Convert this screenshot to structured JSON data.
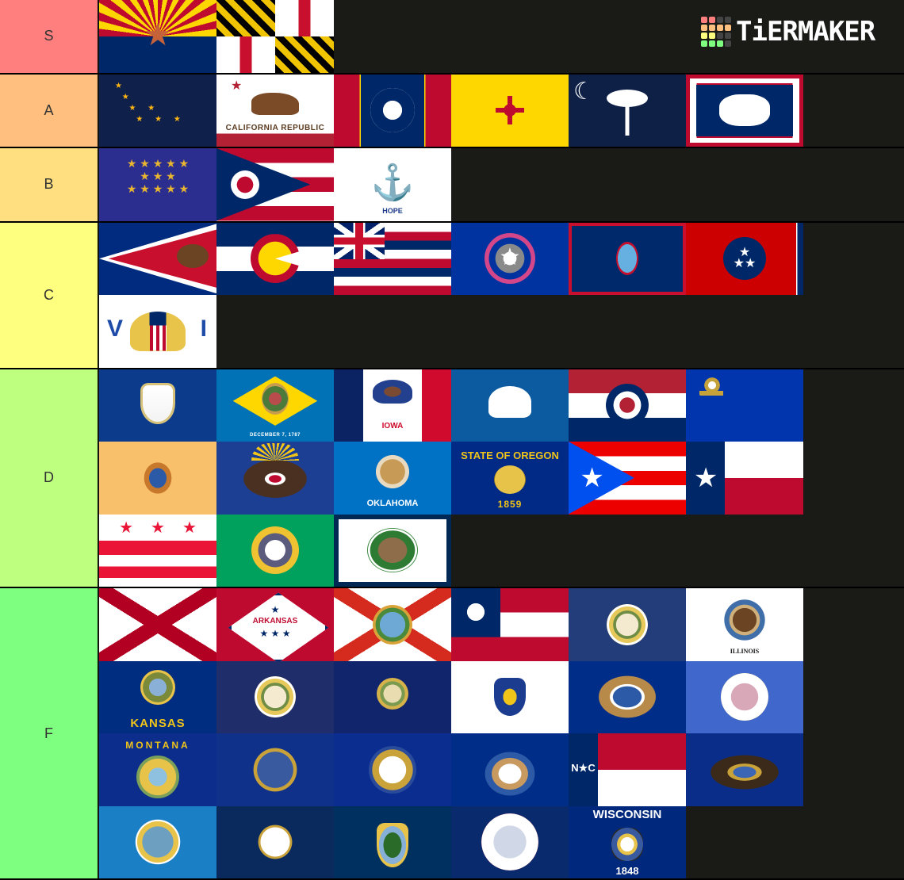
{
  "logo": {
    "text": "TiERMAKER",
    "grid_colors": [
      "#ff7f7f",
      "#ff7f7f",
      "#444",
      "#444",
      "#ffbf7f",
      "#ffbf7f",
      "#ffbf7f",
      "#ffbf7f",
      "#ffff7f",
      "#ffff7f",
      "#444",
      "#444",
      "#7fff7f",
      "#7fff7f",
      "#7fff7f",
      "#444"
    ]
  },
  "colors": {
    "background": "#1a1a17"
  },
  "tiers": [
    {
      "label": "S",
      "color": "#ff7f7f",
      "flags": [
        {
          "id": "arizona"
        },
        {
          "id": "maryland"
        }
      ]
    },
    {
      "label": "A",
      "color": "#ffbf7f",
      "flags": [
        {
          "id": "alaska"
        },
        {
          "id": "california",
          "texts": [
            "CALIFORNIA REPUBLIC"
          ]
        },
        {
          "id": "mississippi"
        },
        {
          "id": "newmexico"
        },
        {
          "id": "southcarolina"
        },
        {
          "id": "wyoming"
        }
      ]
    },
    {
      "label": "B",
      "color": "#ffdf7f",
      "flags": [
        {
          "id": "indiana"
        },
        {
          "id": "ohio"
        },
        {
          "id": "rhodeisland",
          "texts": [
            "HOPE"
          ]
        }
      ]
    },
    {
      "label": "C",
      "color": "#ffff7f",
      "flags": [
        {
          "id": "americansamoa"
        },
        {
          "id": "colorado"
        },
        {
          "id": "hawaii"
        },
        {
          "id": "nmi"
        },
        {
          "id": "guam"
        },
        {
          "id": "tennessee"
        },
        {
          "id": "usvi",
          "texts": [
            "V",
            "I"
          ]
        }
      ]
    },
    {
      "label": "D",
      "color": "#bfff7f",
      "flags": [
        {
          "id": "connecticut"
        },
        {
          "id": "delaware",
          "texts": [
            "DECEMBER 7, 1787"
          ]
        },
        {
          "id": "iowa",
          "texts": [
            "IOWA"
          ]
        },
        {
          "id": "louisiana"
        },
        {
          "id": "missouri"
        },
        {
          "id": "nevada"
        },
        {
          "id": "newjersey"
        },
        {
          "id": "northdakota"
        },
        {
          "id": "oklahoma",
          "texts": [
            "OKLAHOMA"
          ]
        },
        {
          "id": "oregon",
          "texts": [
            "STATE OF OREGON",
            "1859"
          ]
        },
        {
          "id": "puertorico"
        },
        {
          "id": "texas"
        },
        {
          "id": "dc"
        },
        {
          "id": "washington"
        },
        {
          "id": "westvirginia"
        }
      ]
    },
    {
      "label": "F",
      "color": "#7fff7f",
      "flags": [
        {
          "id": "alabama"
        },
        {
          "id": "arkansas",
          "texts": [
            "ARKANSAS"
          ]
        },
        {
          "id": "florida"
        },
        {
          "id": "georgia"
        },
        {
          "id": "idaho"
        },
        {
          "id": "illinois",
          "texts": [
            "ILLINOIS"
          ]
        },
        {
          "id": "kansas",
          "texts": [
            "KANSAS"
          ]
        },
        {
          "id": "kentucky"
        },
        {
          "id": "maine"
        },
        {
          "id": "massachusetts"
        },
        {
          "id": "michigan"
        },
        {
          "id": "minnesota"
        },
        {
          "id": "montana",
          "texts": [
            "MONTANA"
          ]
        },
        {
          "id": "nebraska"
        },
        {
          "id": "newhampshire"
        },
        {
          "id": "newyork"
        },
        {
          "id": "northcarolina",
          "texts": [
            "N★C"
          ]
        },
        {
          "id": "pennsylvania"
        },
        {
          "id": "southdakota"
        },
        {
          "id": "utah"
        },
        {
          "id": "vermont"
        },
        {
          "id": "virginia"
        },
        {
          "id": "wisconsin",
          "texts": [
            "WISCONSIN",
            "1848"
          ]
        }
      ]
    }
  ]
}
